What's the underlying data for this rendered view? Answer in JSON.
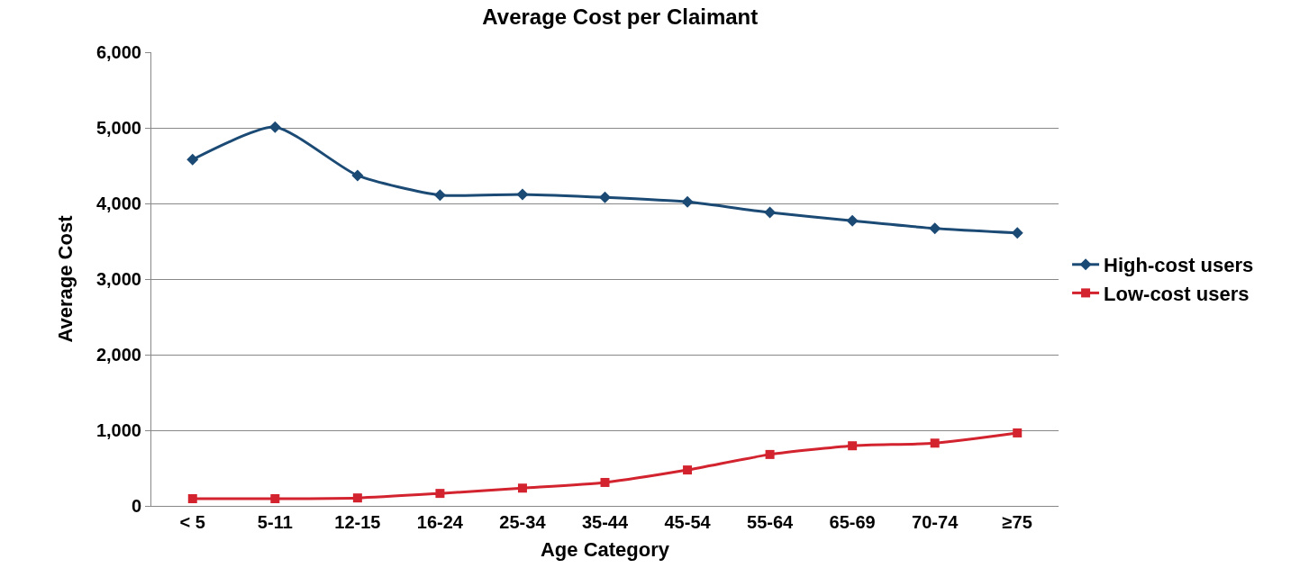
{
  "chart_data": {
    "type": "line",
    "title": "Average Cost per Claimant",
    "xlabel": "Age Category",
    "ylabel": "Average Cost",
    "categories": [
      "< 5",
      "5-11",
      "12-15",
      "16-24",
      "25-34",
      "35-44",
      "45-54",
      "55-64",
      "65-69",
      "70-74",
      "≥75"
    ],
    "series": [
      {
        "name": "High-cost users",
        "color": "#1b4a75",
        "marker": "diamond",
        "values": [
          4580,
          5010,
          4370,
          4110,
          4120,
          4080,
          4020,
          3880,
          3770,
          3670,
          3610
        ]
      },
      {
        "name": "Low-cost users",
        "color": "#d2232f",
        "marker": "square",
        "values": [
          95,
          95,
          105,
          165,
          235,
          310,
          475,
          680,
          795,
          830,
          965
        ]
      }
    ],
    "ylim": [
      0,
      6000
    ],
    "yticks": [
      {
        "value": 0,
        "label": "0"
      },
      {
        "value": 1000,
        "label": "1,000"
      },
      {
        "value": 2000,
        "label": "2,000"
      },
      {
        "value": 3000,
        "label": "3,000"
      },
      {
        "value": 4000,
        "label": "4,000"
      },
      {
        "value": 5000,
        "label": "5,000"
      },
      {
        "value": 6000,
        "label": "6,000"
      }
    ],
    "grid": "y",
    "legend": "right",
    "line_style": "solid"
  }
}
